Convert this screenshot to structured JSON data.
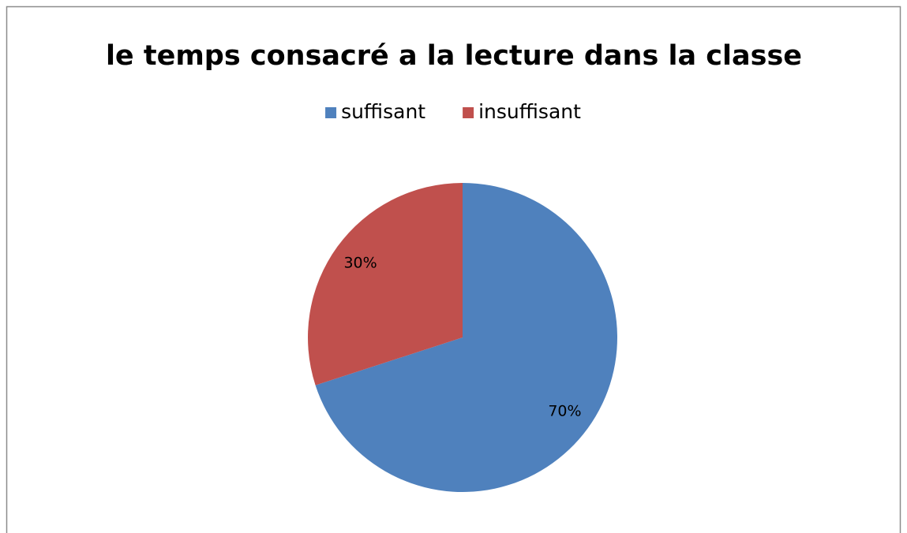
{
  "chart_data": {
    "type": "pie",
    "title": "le temps consacré a la lecture dans la classe",
    "categories": [
      "suffisant",
      "insuffisant"
    ],
    "values": [
      70,
      30
    ],
    "value_labels": [
      "70%",
      "30%"
    ],
    "colors": [
      "#4f81bd",
      "#c0504d"
    ],
    "legend": "top"
  }
}
